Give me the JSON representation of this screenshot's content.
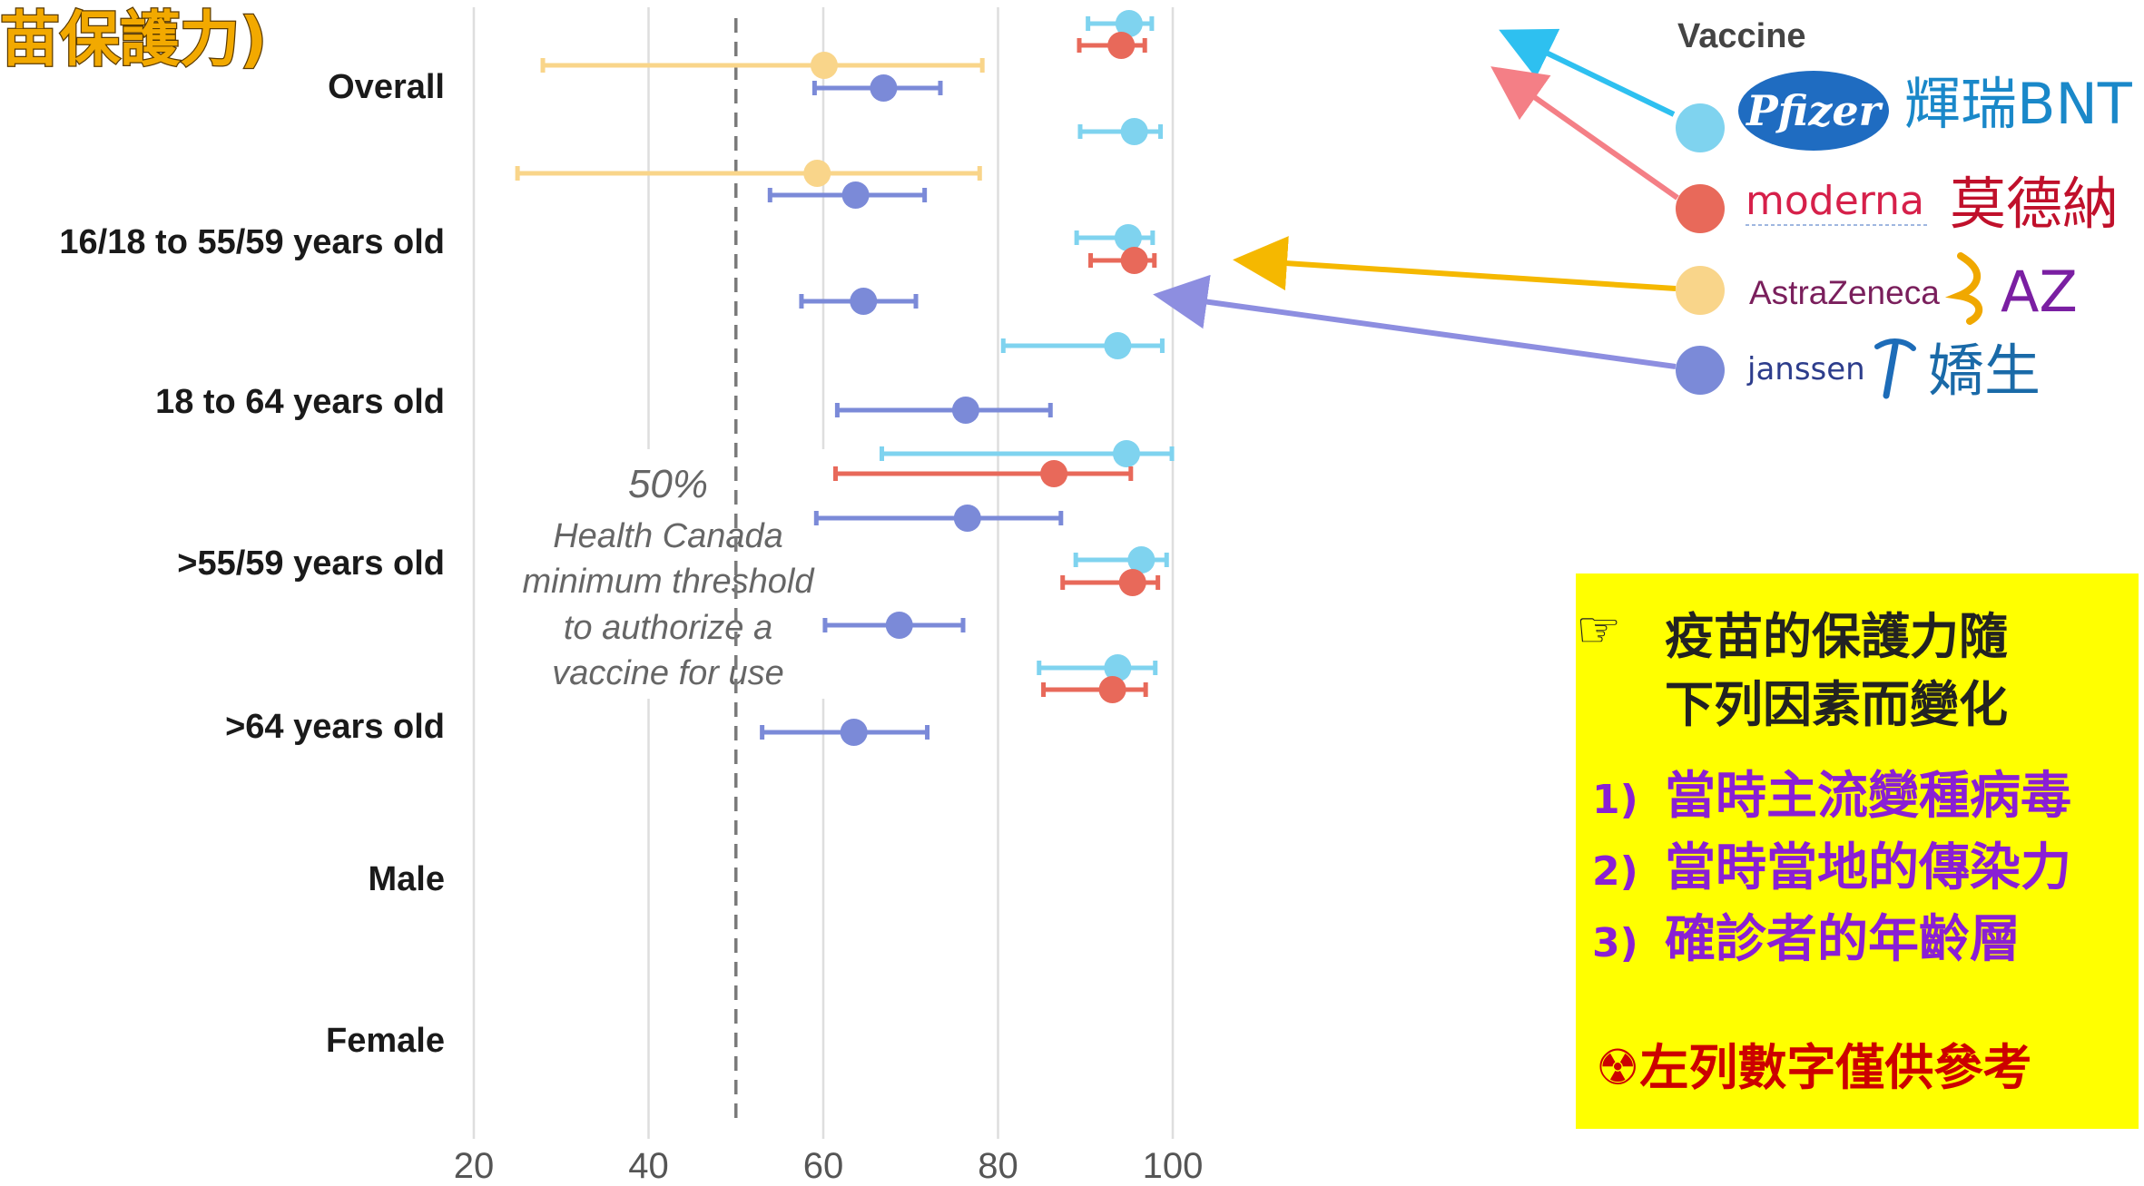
{
  "page_title": "苗保護力)",
  "chart_data": {
    "type": "forest",
    "legend": {
      "title": "Vaccine",
      "entries": [
        {
          "brand": "Pfizer",
          "name_zh": "輝瑞BNT",
          "color": "#7fd3ef",
          "text_color": "#1a88c9"
        },
        {
          "brand": "moderna",
          "name_zh": "莫德納",
          "color": "#e8695a",
          "text_color": "#c0102b"
        },
        {
          "brand": "AstraZeneca",
          "name_zh": "AZ",
          "color": "#f9d58a",
          "text_color": "#7a1fa2"
        },
        {
          "brand": "janssen",
          "name_zh": "嬌生",
          "color": "#7b8ad8",
          "text_color": "#1a6aa8"
        }
      ]
    },
    "xaxis": {
      "ticks": [
        "20",
        "40",
        "60",
        "80",
        "100"
      ],
      "range": [
        20,
        102
      ]
    },
    "threshold": {
      "value": 50,
      "label_pct": "50%",
      "label_lines": [
        "Health Canada",
        "minimum threshold",
        "to authorize a",
        "vaccine for use"
      ]
    },
    "groups": [
      {
        "label": "Overall",
        "rows": [
          {
            "vaccine": "Pfizer",
            "est": 95,
            "lo": 90.3,
            "hi": 97.6
          },
          {
            "vaccine": "moderna",
            "est": 94.1,
            "lo": 89.3,
            "hi": 96.8
          },
          {
            "vaccine": "AstraZeneca",
            "est": 60.1,
            "lo": 27.9,
            "hi": 78.2
          },
          {
            "vaccine": "janssen",
            "est": 66.9,
            "lo": 59.0,
            "hi": 73.4
          }
        ]
      },
      {
        "label": "16/18 to 55/59 years old",
        "rows": [
          {
            "vaccine": "Pfizer",
            "est": 95.6,
            "lo": 89.4,
            "hi": 98.6
          },
          {
            "vaccine": "AstraZeneca",
            "est": 59.3,
            "lo": 25.0,
            "hi": 77.9
          },
          {
            "vaccine": "janssen",
            "est": 63.7,
            "lo": 53.9,
            "hi": 71.6
          }
        ]
      },
      {
        "label": "18 to 64 years old",
        "rows": [
          {
            "vaccine": "Pfizer",
            "est": 94.9,
            "lo": 89.0,
            "hi": 97.7
          },
          {
            "vaccine": "moderna",
            "est": 95.6,
            "lo": 90.6,
            "hi": 97.9
          },
          {
            "vaccine": "janssen",
            "est": 64.6,
            "lo": 57.5,
            "hi": 70.6
          }
        ]
      },
      {
        "label": ">55/59 years old",
        "rows": [
          {
            "vaccine": "Pfizer",
            "est": 93.7,
            "lo": 80.6,
            "hi": 98.8
          },
          {
            "vaccine": "janssen",
            "est": 76.3,
            "lo": 61.6,
            "hi": 86.0
          }
        ]
      },
      {
        "label": ">64 years old",
        "rows": [
          {
            "vaccine": "Pfizer",
            "est": 94.7,
            "lo": 66.7,
            "hi": 99.9
          },
          {
            "vaccine": "moderna",
            "est": 86.4,
            "lo": 61.4,
            "hi": 95.2
          },
          {
            "vaccine": "janssen",
            "est": 76.5,
            "lo": 59.2,
            "hi": 87.2
          }
        ]
      },
      {
        "label": "Male",
        "rows": [
          {
            "vaccine": "Pfizer",
            "est": 96.4,
            "lo": 88.9,
            "hi": 99.3
          },
          {
            "vaccine": "moderna",
            "est": 95.4,
            "lo": 87.4,
            "hi": 98.3
          },
          {
            "vaccine": "janssen",
            "est": 68.7,
            "lo": 60.2,
            "hi": 76.0
          }
        ]
      },
      {
        "label": "Female",
        "rows": [
          {
            "vaccine": "Pfizer",
            "est": 93.7,
            "lo": 84.7,
            "hi": 98.0
          },
          {
            "vaccine": "moderna",
            "est": 93.1,
            "lo": 85.2,
            "hi": 96.9
          },
          {
            "vaccine": "janssen",
            "est": 63.5,
            "lo": 53.0,
            "hi": 71.9
          }
        ]
      }
    ]
  },
  "note": {
    "intro_lines": [
      "疫苗的保護力隨",
      "下列因素而變化"
    ],
    "items": [
      {
        "num": "1)",
        "text": "當時主流變種病毒"
      },
      {
        "num": "2)",
        "text": "當時當地的傳染力"
      },
      {
        "num": "3)",
        "text": "確診者的年齡層"
      }
    ],
    "footer": "左列數字僅供參考",
    "hand_icon": "pointing-hand-icon",
    "footer_icon": "radioactive-symbol-icon"
  }
}
